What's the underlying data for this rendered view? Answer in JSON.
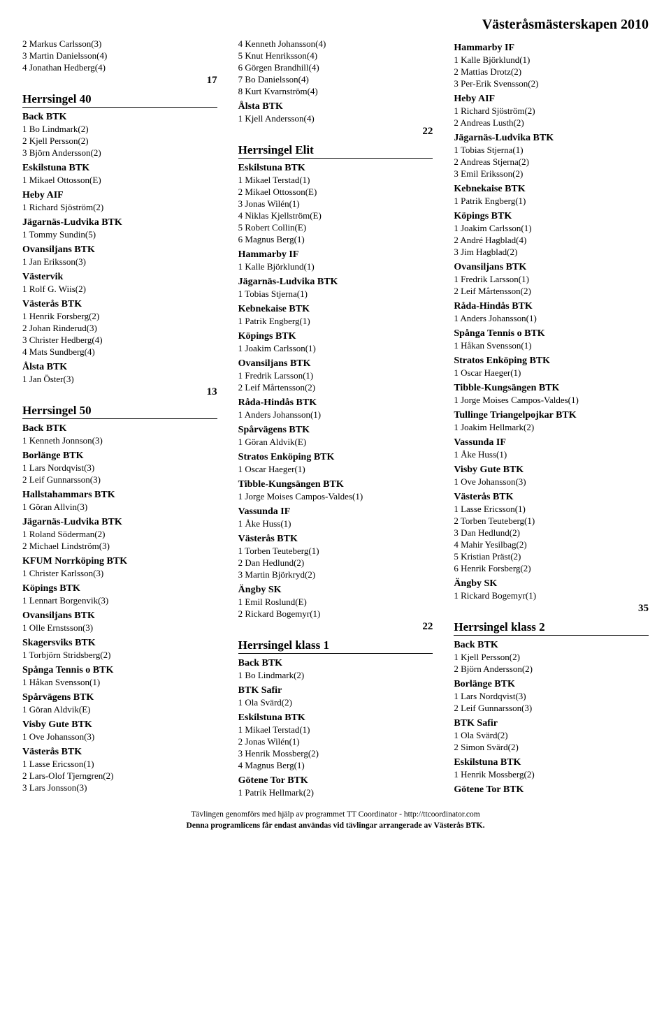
{
  "page_title": "Västeråsmästerskapen 2010",
  "footer_line1": "Tävlingen genomförs med hjälp av programmet TT Coordinator - http://ttcoordinator.com",
  "footer_line2": "Denna programlicens får endast användas vid tävlingar arrangerade av Västerås BTK.",
  "columns": [
    {
      "items": [
        {
          "type": "entry",
          "text": "2 Markus Carlsson(3)"
        },
        {
          "type": "entry",
          "text": "3 Martin Danielsson(4)"
        },
        {
          "type": "entry",
          "text": "4 Jonathan Hedberg(4)"
        },
        {
          "type": "count",
          "text": "17"
        },
        {
          "type": "section",
          "text": "Herrsingel 40"
        },
        {
          "type": "club",
          "text": "Back BTK"
        },
        {
          "type": "entry",
          "text": "1 Bo Lindmark(2)"
        },
        {
          "type": "entry",
          "text": "2 Kjell Persson(2)"
        },
        {
          "type": "entry",
          "text": "3 Björn Andersson(2)"
        },
        {
          "type": "club",
          "text": "Eskilstuna BTK"
        },
        {
          "type": "entry",
          "text": "1 Mikael Ottosson(E)"
        },
        {
          "type": "club",
          "text": "Heby AIF"
        },
        {
          "type": "entry",
          "text": "1 Richard Sjöström(2)"
        },
        {
          "type": "club",
          "text": "Jägarnäs-Ludvika BTK"
        },
        {
          "type": "entry",
          "text": "1 Tommy Sundin(5)"
        },
        {
          "type": "club",
          "text": "Ovansiljans BTK"
        },
        {
          "type": "entry",
          "text": "1 Jan Eriksson(3)"
        },
        {
          "type": "club",
          "text": "Västervik"
        },
        {
          "type": "entry",
          "text": "1 Rolf G. Wiis(2)"
        },
        {
          "type": "club",
          "text": "Västerås BTK"
        },
        {
          "type": "entry",
          "text": "1 Henrik Forsberg(2)"
        },
        {
          "type": "entry",
          "text": "2 Johan Rinderud(3)"
        },
        {
          "type": "entry",
          "text": "3 Christer Hedberg(4)"
        },
        {
          "type": "entry",
          "text": "4 Mats Sundberg(4)"
        },
        {
          "type": "club",
          "text": "Ålsta BTK"
        },
        {
          "type": "entry",
          "text": "1 Jan Öster(3)"
        },
        {
          "type": "count",
          "text": "13"
        },
        {
          "type": "section",
          "text": "Herrsingel 50"
        },
        {
          "type": "club",
          "text": "Back BTK"
        },
        {
          "type": "entry",
          "text": "1 Kenneth Jonnson(3)"
        },
        {
          "type": "club",
          "text": "Borlänge BTK"
        },
        {
          "type": "entry",
          "text": "1 Lars Nordqvist(3)"
        },
        {
          "type": "entry",
          "text": "2 Leif Gunnarsson(3)"
        },
        {
          "type": "club",
          "text": "Hallstahammars BTK"
        },
        {
          "type": "entry",
          "text": "1 Göran Allvin(3)"
        },
        {
          "type": "club",
          "text": "Jägarnäs-Ludvika BTK"
        },
        {
          "type": "entry",
          "text": "1 Roland Söderman(2)"
        },
        {
          "type": "entry",
          "text": "2 Michael Lindström(3)"
        },
        {
          "type": "club",
          "text": "KFUM Norrköping BTK"
        },
        {
          "type": "entry",
          "text": "1 Christer Karlsson(3)"
        },
        {
          "type": "club",
          "text": "Köpings BTK"
        },
        {
          "type": "entry",
          "text": "1 Lennart Borgenvik(3)"
        },
        {
          "type": "club",
          "text": "Ovansiljans BTK"
        },
        {
          "type": "entry",
          "text": "1 Olle Ernstsson(3)"
        },
        {
          "type": "club",
          "text": "Skagersviks BTK"
        },
        {
          "type": "entry",
          "text": "1 Torbjörn Stridsberg(2)"
        },
        {
          "type": "club",
          "text": "Spånga Tennis o BTK"
        },
        {
          "type": "entry",
          "text": "1 Håkan Svensson(1)"
        },
        {
          "type": "club",
          "text": "Spårvägens BTK"
        },
        {
          "type": "entry",
          "text": "1 Göran Aldvik(E)"
        },
        {
          "type": "club",
          "text": "Visby Gute BTK"
        },
        {
          "type": "entry",
          "text": "1 Ove Johansson(3)"
        },
        {
          "type": "club",
          "text": "Västerås BTK"
        },
        {
          "type": "entry",
          "text": "1 Lasse Ericsson(1)"
        },
        {
          "type": "entry",
          "text": "2 Lars-Olof Tjerngren(2)"
        },
        {
          "type": "entry",
          "text": "3 Lars Jonsson(3)"
        }
      ]
    },
    {
      "items": [
        {
          "type": "entry",
          "text": "4 Kenneth Johansson(4)"
        },
        {
          "type": "entry",
          "text": "5 Knut Henriksson(4)"
        },
        {
          "type": "entry",
          "text": "6 Görgen Brandhill(4)"
        },
        {
          "type": "entry",
          "text": "7 Bo Danielsson(4)"
        },
        {
          "type": "entry",
          "text": "8 Kurt Kvarnström(4)"
        },
        {
          "type": "club",
          "text": "Ålsta BTK"
        },
        {
          "type": "entry",
          "text": "1 Kjell Andersson(4)"
        },
        {
          "type": "count",
          "text": "22"
        },
        {
          "type": "section",
          "text": "Herrsingel Elit"
        },
        {
          "type": "club",
          "text": "Eskilstuna BTK"
        },
        {
          "type": "entry",
          "text": "1 Mikael Terstad(1)"
        },
        {
          "type": "entry",
          "text": "2 Mikael Ottosson(E)"
        },
        {
          "type": "entry",
          "text": "3 Jonas Wilén(1)"
        },
        {
          "type": "entry",
          "text": "4 Niklas Kjellström(E)"
        },
        {
          "type": "entry",
          "text": "5 Robert Collin(E)"
        },
        {
          "type": "entry",
          "text": "6 Magnus Berg(1)"
        },
        {
          "type": "club",
          "text": "Hammarby IF"
        },
        {
          "type": "entry",
          "text": "1 Kalle Björklund(1)"
        },
        {
          "type": "club",
          "text": "Jägarnäs-Ludvika BTK"
        },
        {
          "type": "entry",
          "text": "1 Tobias Stjerna(1)"
        },
        {
          "type": "club",
          "text": "Kebnekaise BTK"
        },
        {
          "type": "entry",
          "text": "1 Patrik Engberg(1)"
        },
        {
          "type": "club",
          "text": "Köpings BTK"
        },
        {
          "type": "entry",
          "text": "1 Joakim Carlsson(1)"
        },
        {
          "type": "club",
          "text": "Ovansiljans BTK"
        },
        {
          "type": "entry",
          "text": "1 Fredrik Larsson(1)"
        },
        {
          "type": "entry",
          "text": "2 Leif Mårtensson(2)"
        },
        {
          "type": "club",
          "text": "Råda-Hindås BTK"
        },
        {
          "type": "entry",
          "text": "1 Anders Johansson(1)"
        },
        {
          "type": "club",
          "text": "Spårvägens BTK"
        },
        {
          "type": "entry",
          "text": "1 Göran Aldvik(E)"
        },
        {
          "type": "club",
          "text": "Stratos Enköping BTK"
        },
        {
          "type": "entry",
          "text": "1 Oscar Haeger(1)"
        },
        {
          "type": "club",
          "text": "Tibble-Kungsängen BTK"
        },
        {
          "type": "entry",
          "text": "1 Jorge Moises Campos-Valdes(1)"
        },
        {
          "type": "club",
          "text": "Vassunda IF"
        },
        {
          "type": "entry",
          "text": "1 Åke Huss(1)"
        },
        {
          "type": "club",
          "text": "Västerås BTK"
        },
        {
          "type": "entry",
          "text": "1 Torben Teuteberg(1)"
        },
        {
          "type": "entry",
          "text": "2 Dan Hedlund(2)"
        },
        {
          "type": "entry",
          "text": "3 Martin Björkryd(2)"
        },
        {
          "type": "club",
          "text": "Ängby SK"
        },
        {
          "type": "entry",
          "text": "1 Emil Roslund(E)"
        },
        {
          "type": "entry",
          "text": "2 Rickard Bogemyr(1)"
        },
        {
          "type": "count",
          "text": "22"
        },
        {
          "type": "section",
          "text": "Herrsingel klass 1"
        },
        {
          "type": "club",
          "text": "Back BTK"
        },
        {
          "type": "entry",
          "text": "1 Bo Lindmark(2)"
        },
        {
          "type": "club",
          "text": "BTK Safir"
        },
        {
          "type": "entry",
          "text": "1 Ola Svärd(2)"
        },
        {
          "type": "club",
          "text": "Eskilstuna BTK"
        },
        {
          "type": "entry",
          "text": "1 Mikael Terstad(1)"
        },
        {
          "type": "entry",
          "text": "2 Jonas Wilén(1)"
        },
        {
          "type": "entry",
          "text": "3 Henrik Mossberg(2)"
        },
        {
          "type": "entry",
          "text": "4 Magnus Berg(1)"
        },
        {
          "type": "club",
          "text": "Götene Tor BTK"
        },
        {
          "type": "entry",
          "text": "1 Patrik Hellmark(2)"
        }
      ]
    },
    {
      "items": [
        {
          "type": "club",
          "text": "Hammarby IF"
        },
        {
          "type": "entry",
          "text": "1 Kalle Björklund(1)"
        },
        {
          "type": "entry",
          "text": "2 Mattias Drotz(2)"
        },
        {
          "type": "entry",
          "text": "3 Per-Erik Svensson(2)"
        },
        {
          "type": "club",
          "text": "Heby AIF"
        },
        {
          "type": "entry",
          "text": "1 Richard Sjöström(2)"
        },
        {
          "type": "entry",
          "text": "2 Andreas Lusth(2)"
        },
        {
          "type": "club",
          "text": "Jägarnäs-Ludvika BTK"
        },
        {
          "type": "entry",
          "text": "1 Tobias Stjerna(1)"
        },
        {
          "type": "entry",
          "text": "2 Andreas Stjerna(2)"
        },
        {
          "type": "entry",
          "text": "3 Emil Eriksson(2)"
        },
        {
          "type": "club",
          "text": "Kebnekaise BTK"
        },
        {
          "type": "entry",
          "text": "1 Patrik Engberg(1)"
        },
        {
          "type": "club",
          "text": "Köpings BTK"
        },
        {
          "type": "entry",
          "text": "1 Joakim Carlsson(1)"
        },
        {
          "type": "entry",
          "text": "2 André Hagblad(4)"
        },
        {
          "type": "entry",
          "text": "3 Jim Hagblad(2)"
        },
        {
          "type": "club",
          "text": "Ovansiljans BTK"
        },
        {
          "type": "entry",
          "text": "1 Fredrik Larsson(1)"
        },
        {
          "type": "entry",
          "text": "2 Leif Mårtensson(2)"
        },
        {
          "type": "club",
          "text": "Råda-Hindås BTK"
        },
        {
          "type": "entry",
          "text": "1 Anders Johansson(1)"
        },
        {
          "type": "club",
          "text": "Spånga Tennis o BTK"
        },
        {
          "type": "entry",
          "text": "1 Håkan Svensson(1)"
        },
        {
          "type": "club",
          "text": "Stratos Enköping BTK"
        },
        {
          "type": "entry",
          "text": "1 Oscar Haeger(1)"
        },
        {
          "type": "club",
          "text": "Tibble-Kungsängen BTK"
        },
        {
          "type": "entry",
          "text": "1 Jorge Moises Campos-Valdes(1)"
        },
        {
          "type": "club",
          "text": "Tullinge Triangelpojkar BTK"
        },
        {
          "type": "entry",
          "text": "1 Joakim Hellmark(2)"
        },
        {
          "type": "club",
          "text": "Vassunda IF"
        },
        {
          "type": "entry",
          "text": "1 Åke Huss(1)"
        },
        {
          "type": "club",
          "text": "Visby Gute BTK"
        },
        {
          "type": "entry",
          "text": "1 Ove Johansson(3)"
        },
        {
          "type": "club",
          "text": "Västerås BTK"
        },
        {
          "type": "entry",
          "text": "1 Lasse Ericsson(1)"
        },
        {
          "type": "entry",
          "text": "2 Torben Teuteberg(1)"
        },
        {
          "type": "entry",
          "text": "3 Dan Hedlund(2)"
        },
        {
          "type": "entry",
          "text": "4 Mahir Yesilbag(2)"
        },
        {
          "type": "entry",
          "text": "5 Kristian Präst(2)"
        },
        {
          "type": "entry",
          "text": "6 Henrik Forsberg(2)"
        },
        {
          "type": "club",
          "text": "Ängby SK"
        },
        {
          "type": "entry",
          "text": "1 Rickard Bogemyr(1)"
        },
        {
          "type": "count",
          "text": "35"
        },
        {
          "type": "section",
          "text": "Herrsingel klass 2"
        },
        {
          "type": "club",
          "text": "Back BTK"
        },
        {
          "type": "entry",
          "text": "1 Kjell Persson(2)"
        },
        {
          "type": "entry",
          "text": "2 Björn Andersson(2)"
        },
        {
          "type": "club",
          "text": "Borlänge BTK"
        },
        {
          "type": "entry",
          "text": "1 Lars Nordqvist(3)"
        },
        {
          "type": "entry",
          "text": "2 Leif Gunnarsson(3)"
        },
        {
          "type": "club",
          "text": "BTK Safir"
        },
        {
          "type": "entry",
          "text": "1 Ola Svärd(2)"
        },
        {
          "type": "entry",
          "text": "2 Simon Svärd(2)"
        },
        {
          "type": "club",
          "text": "Eskilstuna BTK"
        },
        {
          "type": "entry",
          "text": "1 Henrik Mossberg(2)"
        },
        {
          "type": "club",
          "text": "Götene Tor BTK"
        }
      ]
    }
  ]
}
